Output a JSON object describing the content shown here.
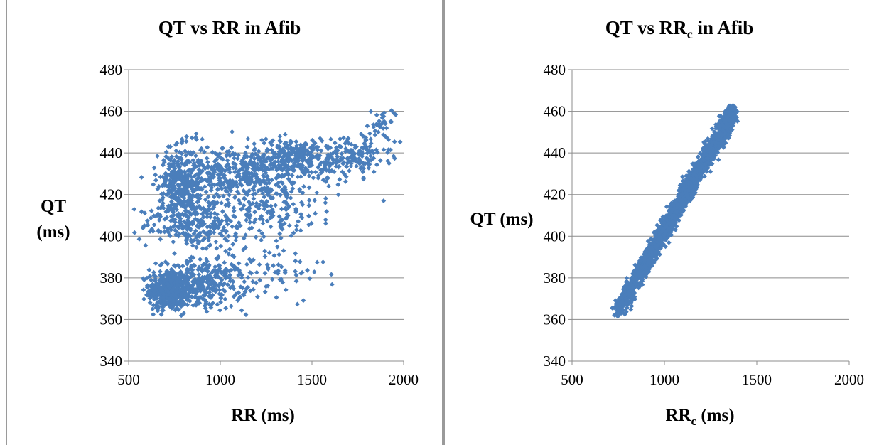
{
  "chart_data": [
    {
      "type": "scatter",
      "title": "QT vs RR in Afib",
      "xlabel": "RR (ms)",
      "ylabel_lines": [
        "QT",
        "(ms)"
      ],
      "xlim": [
        500,
        2000
      ],
      "ylim": [
        340,
        480
      ],
      "xticks": [
        "500",
        "1000",
        "1500",
        "2000"
      ],
      "yticks": [
        "480",
        "460",
        "440",
        "420",
        "400",
        "380",
        "360",
        "340"
      ],
      "grid": "horizontal",
      "legend": "none",
      "marker_color": "#4A7EBB",
      "clusters": [
        {
          "cx": 720,
          "cy": 374,
          "sx": 55,
          "sy": 5,
          "n": 420
        },
        {
          "cx": 900,
          "cy": 377,
          "sx": 120,
          "sy": 6,
          "n": 330
        },
        {
          "cx": 1250,
          "cy": 382,
          "sx": 160,
          "sy": 8,
          "n": 80
        },
        {
          "cx": 850,
          "cy": 405,
          "sx": 140,
          "sy": 6,
          "n": 220
        },
        {
          "cx": 1250,
          "cy": 414,
          "sx": 200,
          "sy": 7,
          "n": 200
        },
        {
          "cx": 780,
          "cy": 424,
          "sx": 60,
          "sy": 9,
          "n": 320
        },
        {
          "cx": 1050,
          "cy": 430,
          "sx": 160,
          "sy": 7,
          "n": 380
        },
        {
          "cx": 1420,
          "cy": 437,
          "sx": 150,
          "sy": 5,
          "n": 330
        },
        {
          "cx": 1740,
          "cy": 439,
          "sx": 90,
          "sy": 5,
          "n": 130
        },
        {
          "cx": 1900,
          "cy": 454,
          "sx": 45,
          "sy": 5,
          "n": 40
        }
      ]
    },
    {
      "type": "scatter",
      "title_main": "QT vs RR",
      "title_sub": "c",
      "title_tail": " in Afib",
      "xlabel_main": "RR",
      "xlabel_sub": "c",
      "xlabel_tail": " (ms)",
      "ylabel": "QT (ms)",
      "xlim": [
        500,
        2000
      ],
      "ylim": [
        340,
        480
      ],
      "xticks": [
        "500",
        "1000",
        "1500",
        "2000"
      ],
      "yticks": [
        "480",
        "460",
        "440",
        "420",
        "400",
        "380",
        "360",
        "340"
      ],
      "grid": "horizontal",
      "legend": "none",
      "marker_color": "#4A7EBB",
      "trend": {
        "x_start": 740,
        "y_start": 363,
        "x_end": 1380,
        "y_end": 461
      },
      "n_points": 2200
    }
  ]
}
